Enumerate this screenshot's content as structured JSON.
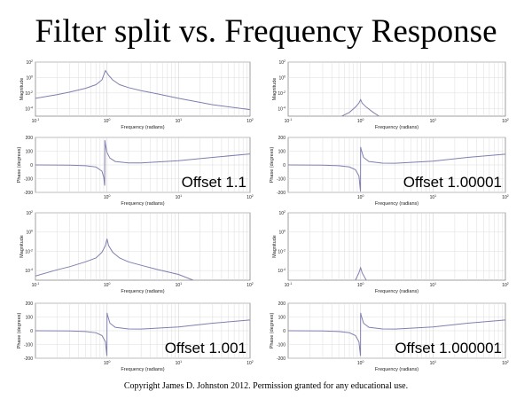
{
  "title": "Filter split vs. Frequency Response",
  "copyright": "Copyright James D. Johnston 2012. Permission  granted for any educational use.",
  "chart_data": {
    "type": "line",
    "xscale": "log",
    "xlabel": "Frequency (radians)",
    "xlim": [
      0.1,
      100
    ],
    "x_ticks": [
      {
        "value": 0.1,
        "base": "10",
        "exp": "-1"
      },
      {
        "value": 1,
        "base": "10",
        "exp": "0"
      },
      {
        "value": 10,
        "base": "10",
        "exp": "1"
      },
      {
        "value": 100,
        "base": "10",
        "exp": "2"
      }
    ],
    "magnitude_axis": {
      "ylabel": "Magnitude",
      "yscale": "log",
      "ylim": [
        1e-05,
        100
      ],
      "y_ticks": [
        {
          "value": 100,
          "base": "10",
          "exp": "2"
        },
        {
          "value": 1,
          "base": "10",
          "exp": "0"
        },
        {
          "value": 0.01,
          "base": "10",
          "exp": "-2"
        },
        {
          "value": 0.0001,
          "base": "10",
          "exp": "-4"
        }
      ]
    },
    "phase_axis": {
      "ylabel": "Phase (degrees)",
      "ylim": [
        -200,
        200
      ],
      "y_ticks": [
        "200",
        "100",
        "0",
        "-100",
        "-200"
      ]
    },
    "grid": true,
    "line_color": "#7f7fb0",
    "panels": [
      {
        "label": "Offset 1.1",
        "magnitude": {
          "x": [
            0.1,
            0.2,
            0.3,
            0.5,
            0.7,
            0.85,
            0.95,
            1.05,
            1.2,
            1.5,
            2,
            3,
            5,
            10,
            30,
            100
          ],
          "y": [
            0.002,
            0.006,
            0.013,
            0.04,
            0.12,
            0.5,
            8,
            2,
            0.5,
            0.12,
            0.05,
            0.02,
            0.008,
            0.002,
            0.0003,
            7e-05
          ]
        },
        "phase": {
          "x": [
            0.1,
            0.3,
            0.5,
            0.7,
            0.85,
            0.9,
            0.93,
            0.935,
            0.95,
            1.0,
            1.1,
            1.3,
            2,
            3,
            10,
            30,
            100
          ],
          "y": [
            0,
            -2,
            -6,
            -15,
            -45,
            -90,
            -150,
            180,
            150,
            90,
            50,
            25,
            15,
            15,
            30,
            55,
            80
          ]
        }
      },
      {
        "label": "Offset 1.00001",
        "magnitude": {
          "x": [
            0.55,
            0.7,
            0.85,
            0.95,
            1.0,
            1.05,
            1.2,
            1.5,
            1.8
          ],
          "y": [
            1e-05,
            3e-05,
            0.00015,
            0.0005,
            0.0014,
            0.0005,
            0.00015,
            3e-05,
            1e-05
          ]
        },
        "phase": {
          "x": [
            0.1,
            0.3,
            0.5,
            0.7,
            0.85,
            0.95,
            0.995,
            0.999,
            1.0,
            1.02,
            1.1,
            1.3,
            2,
            3,
            10,
            30,
            100
          ],
          "y": [
            0,
            -2,
            -6,
            -15,
            -35,
            -80,
            -190,
            -190,
            130,
            110,
            55,
            25,
            13,
            12,
            28,
            55,
            78
          ]
        }
      },
      {
        "label": "Offset 1.001",
        "magnitude": {
          "x": [
            0.1,
            0.2,
            0.3,
            0.5,
            0.7,
            0.85,
            0.95,
            1.0,
            1.05,
            1.2,
            1.5,
            2,
            3,
            5,
            10,
            16
          ],
          "y": [
            2.7e-05,
            0.00012,
            0.00025,
            0.0008,
            0.002,
            0.008,
            0.04,
            0.2,
            0.04,
            0.008,
            0.002,
            0.0008,
            0.00035,
            0.00013,
            4e-05,
            1e-05
          ]
        },
        "phase": {
          "x": [
            0.1,
            0.3,
            0.5,
            0.7,
            0.85,
            0.95,
            0.995,
            0.999,
            1.0,
            1.02,
            1.1,
            1.3,
            2,
            3,
            10,
            30,
            100
          ],
          "y": [
            0,
            -2,
            -6,
            -15,
            -35,
            -80,
            -180,
            -180,
            130,
            110,
            55,
            25,
            13,
            12,
            28,
            55,
            78
          ]
        }
      },
      {
        "label": "Offset 1.000001",
        "magnitude": {
          "x": [
            0.85,
            0.95,
            1.0,
            1.05,
            1.2
          ],
          "y": [
            1e-05,
            6e-05,
            0.0002,
            6e-05,
            1e-05
          ]
        },
        "phase": {
          "x": [
            0.1,
            0.3,
            0.5,
            0.7,
            0.85,
            0.95,
            0.995,
            0.999,
            1.0,
            1.02,
            1.1,
            1.3,
            2,
            3,
            10,
            30,
            100
          ],
          "y": [
            0,
            -2,
            -6,
            -15,
            -35,
            -80,
            -180,
            -180,
            130,
            110,
            55,
            25,
            13,
            12,
            28,
            55,
            78
          ]
        }
      }
    ]
  }
}
